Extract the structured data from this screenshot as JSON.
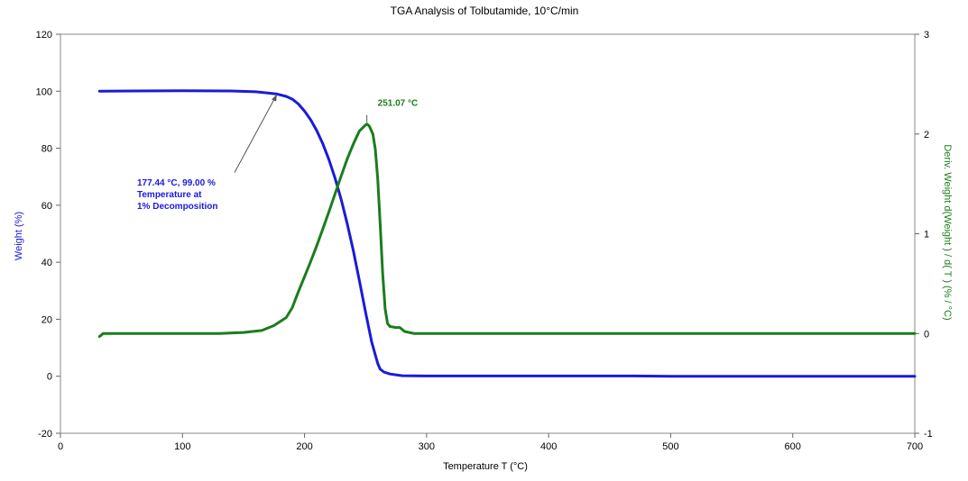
{
  "chart_data": {
    "type": "line",
    "title": "TGA Analysis of Tolbutamide, 10°C/min",
    "xlabel": "Temperature  T  (°C)",
    "ylabel": "Weight   (%)",
    "y2label": "Deriv. Weight d(Weight ) / d( T )  (% / °C)",
    "xlim": [
      0,
      700
    ],
    "ylim": [
      -20,
      120
    ],
    "y2lim": [
      -1,
      3
    ],
    "x_ticks": [
      "0",
      "100",
      "200",
      "300",
      "400",
      "500",
      "600",
      "700"
    ],
    "y_ticks": [
      "-20",
      "0",
      "20",
      "40",
      "60",
      "80",
      "100",
      "120"
    ],
    "y2_ticks": [
      "-1",
      "0",
      "1",
      "2",
      "3"
    ],
    "grid": false,
    "colors": {
      "weight": "#1a1adb",
      "deriv": "#1b7d1b",
      "annotation_arrow": "#555555"
    },
    "series": [
      {
        "key": "weight",
        "axis": "left",
        "x": [
          32,
          60,
          100,
          140,
          160,
          170,
          177.44,
          185,
          190,
          195,
          200,
          205,
          210,
          215,
          220,
          225,
          230,
          235,
          240,
          245,
          250,
          255,
          260,
          262,
          265,
          270,
          280,
          300,
          350,
          400,
          470,
          500,
          600,
          700
        ],
        "y": [
          100,
          100.1,
          100.2,
          100.1,
          99.8,
          99.4,
          99.0,
          98.2,
          97.2,
          95.5,
          93.0,
          90.0,
          86.2,
          81.5,
          76.0,
          69.5,
          62.0,
          53.5,
          44.0,
          33.5,
          22.5,
          12.0,
          4.5,
          2.5,
          1.5,
          0.8,
          0.2,
          0.1,
          0.1,
          0.1,
          0.1,
          0.0,
          0.0,
          0.0
        ]
      },
      {
        "key": "deriv",
        "axis": "right",
        "x": [
          32,
          35,
          60,
          100,
          130,
          150,
          165,
          175,
          185,
          190,
          195,
          200,
          205,
          210,
          215,
          220,
          225,
          230,
          235,
          240,
          245,
          250,
          251.07,
          253,
          256,
          258,
          260,
          262,
          264,
          266,
          268,
          270,
          275,
          278,
          282,
          290,
          300,
          400,
          500,
          600,
          700
        ],
        "y": [
          -0.03,
          0.0,
          0.0,
          0.0,
          0.0,
          0.01,
          0.03,
          0.08,
          0.16,
          0.26,
          0.42,
          0.57,
          0.72,
          0.88,
          1.05,
          1.22,
          1.4,
          1.58,
          1.75,
          1.9,
          2.03,
          2.09,
          2.1,
          2.08,
          2.0,
          1.85,
          1.55,
          1.1,
          0.6,
          0.25,
          0.1,
          0.07,
          0.06,
          0.06,
          0.02,
          0.0,
          0.0,
          0.0,
          0.0,
          0.0,
          0.0
        ]
      }
    ],
    "annotations": [
      {
        "series": "weight",
        "at": [
          177.44,
          99.0
        ],
        "lines": [
          "177.44 °C, 99.00 %",
          "Temperature at",
          "1% Decomposition"
        ]
      },
      {
        "series": "deriv",
        "at": [
          251.07,
          2.1
        ],
        "lines": [
          "251.07 °C"
        ]
      }
    ]
  }
}
